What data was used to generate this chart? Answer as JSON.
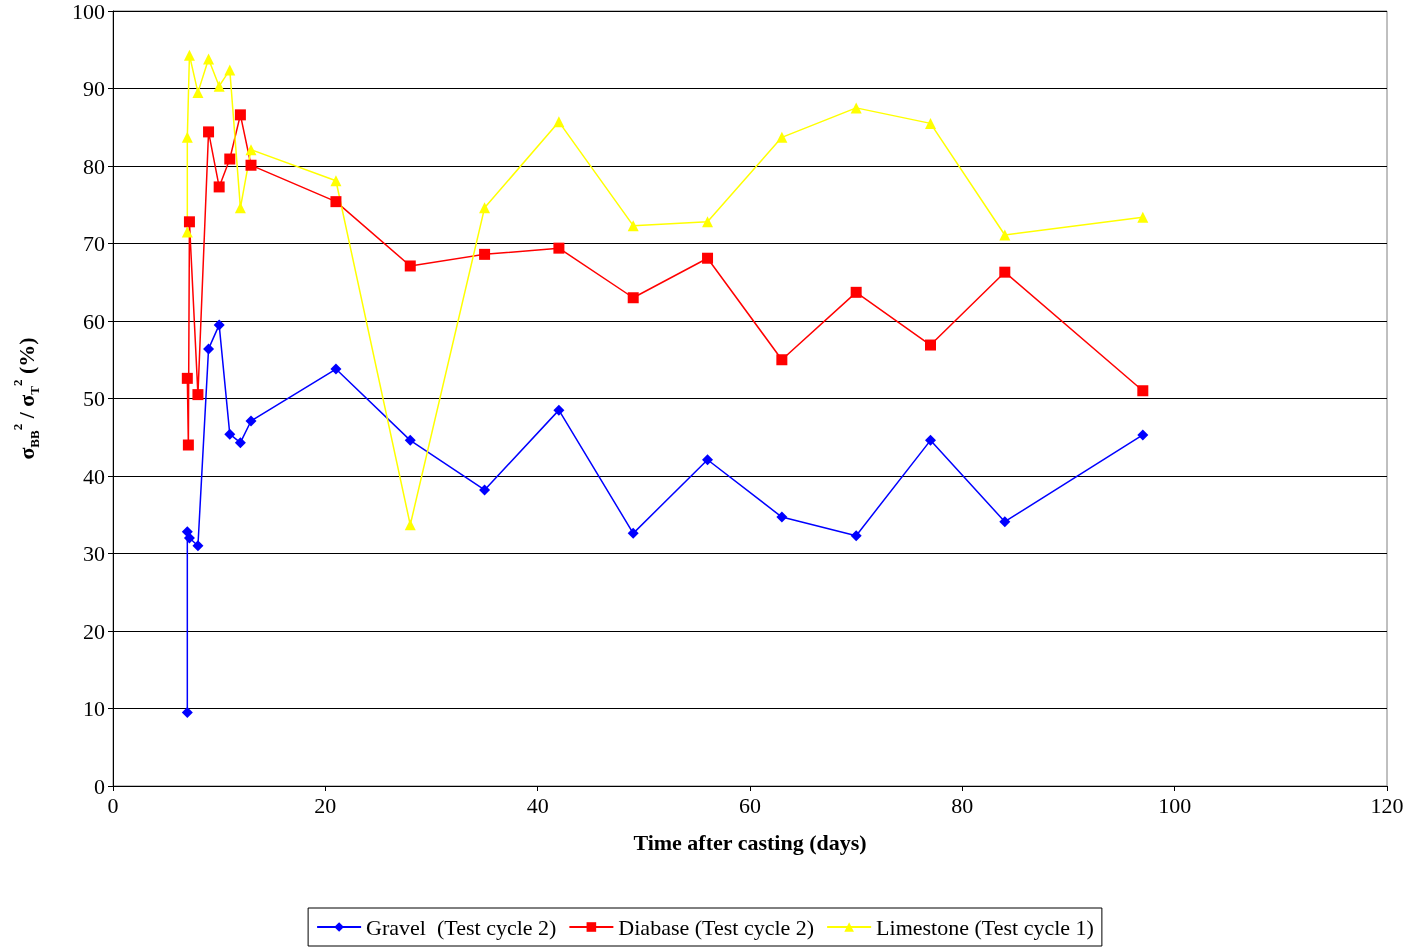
{
  "chart_data": {
    "type": "line",
    "xlabel": "Time after casting (days)",
    "ylabel": "σ$_{BB}$$^{2}$ / σ$_{T}$$^{2}$ (%)",
    "xlim": [
      0,
      120
    ],
    "xticks": [
      0,
      20,
      40,
      60,
      80,
      100,
      120
    ],
    "ylim": [
      0,
      100
    ],
    "yticks": [
      0,
      10,
      20,
      30,
      40,
      50,
      60,
      70,
      80,
      90,
      100
    ],
    "grid": "y",
    "legend": "bottom",
    "series": [
      {
        "name": "Gravel  (Test cycle 2)",
        "color": "#0000ff",
        "marker": "diamond",
        "x": [
          7,
          7,
          7.2,
          8,
          9,
          10,
          11,
          12,
          13,
          21,
          28,
          35,
          42,
          49,
          56,
          63,
          70,
          77,
          84,
          97
        ],
        "values": [
          9.5,
          32.8,
          32.0,
          31.0,
          56.4,
          59.5,
          45.4,
          44.3,
          47.1,
          53.8,
          44.6,
          38.2,
          48.5,
          32.6,
          42.1,
          34.7,
          32.3,
          44.6,
          34.1,
          45.3
        ]
      },
      {
        "name": "Diabase (Test cycle 2)",
        "color": "#ff0000",
        "marker": "square",
        "x": [
          7,
          7.1,
          7.2,
          8,
          9,
          10,
          11,
          12,
          13,
          21,
          28,
          35,
          42,
          49,
          56,
          63,
          70,
          77,
          84,
          97
        ],
        "values": [
          52.6,
          44.0,
          72.8,
          50.5,
          84.4,
          77.3,
          80.9,
          86.6,
          80.1,
          75.4,
          67.1,
          68.6,
          69.4,
          63.0,
          68.1,
          55.0,
          63.7,
          56.9,
          66.3,
          51.0
        ]
      },
      {
        "name": "Limestone (Test cycle 1)",
        "color": "#ffff00",
        "marker": "triangle",
        "x": [
          7,
          7,
          7.2,
          8,
          9,
          10,
          11,
          12,
          13,
          21,
          28,
          35,
          42,
          49,
          56,
          63,
          70,
          77,
          84,
          97
        ],
        "values": [
          71.5,
          83.7,
          94.3,
          89.5,
          93.8,
          90.3,
          92.4,
          74.6,
          82.1,
          78.1,
          33.7,
          74.6,
          85.7,
          72.3,
          72.8,
          83.7,
          87.5,
          85.5,
          71.1,
          73.4
        ]
      }
    ]
  }
}
